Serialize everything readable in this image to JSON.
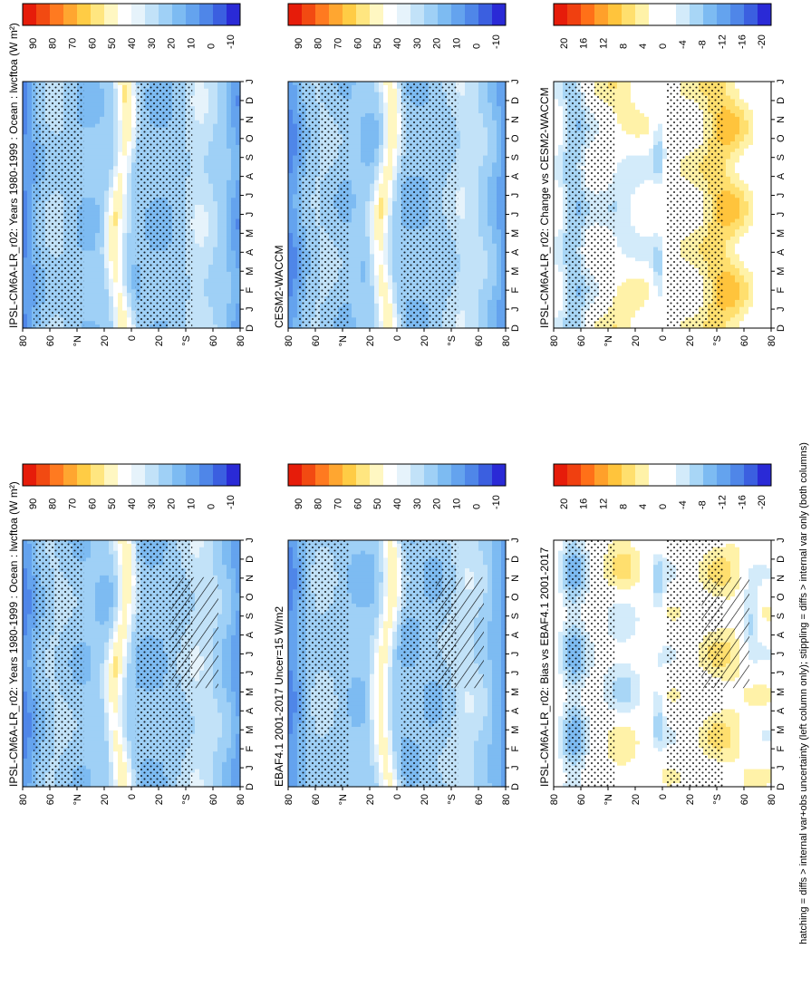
{
  "figure": {
    "footnote": "hatching = diffs > internal var+obs uncertainty (left column only); stippling = diffs > internal var only (both columns)"
  },
  "colors": {
    "field_scale": [
      "#2a2ad6",
      "#3b5fe0",
      "#4f86e8",
      "#64a3ee",
      "#7dbbf2",
      "#9fd0f6",
      "#c2e2f8",
      "#e6f3fb",
      "#ffffff",
      "#fff7c2",
      "#ffe680",
      "#ffcc45",
      "#ffa630",
      "#ff7a20",
      "#f24a12",
      "#e61c0a"
    ],
    "diff_scale": [
      "#2a2ad6",
      "#3b5fe0",
      "#4f86e8",
      "#64a3ee",
      "#7dbbf2",
      "#a8d6f6",
      "#d3ebfa",
      "#ffffff",
      "#ffffff",
      "#fff2a8",
      "#ffdf6e",
      "#ffc43c",
      "#ffa02a",
      "#ff7018",
      "#f04010",
      "#e61c0a"
    ]
  },
  "chart_data": [
    {
      "type": "heatmap",
      "title": "IPSL-CM6A-LR_r02: Years 1980-1999 : Ocean : lwcftoa (W m²)",
      "x_ticks": [
        "D",
        "J",
        "F",
        "M",
        "A",
        "M",
        "J",
        "J",
        "A",
        "S",
        "O",
        "N",
        "D",
        "J"
      ],
      "y_ticks": [
        "80",
        "60",
        "°N",
        "20",
        "0",
        "20",
        "°S",
        "60",
        "80"
      ],
      "colorbar_ticks": [
        "90",
        "80",
        "70",
        "60",
        "50",
        "40",
        "30",
        "20",
        "10",
        "0",
        "-10"
      ],
      "z_range": [
        -10,
        90
      ],
      "scale": "field",
      "hatching": true,
      "stippling": true
    },
    {
      "type": "heatmap",
      "title": "IPSL-CM6A-LR_r02: Years 1980-1999 : Ocean : lwcftoa (W m²)",
      "x_ticks": [
        "D",
        "J",
        "F",
        "M",
        "A",
        "M",
        "J",
        "J",
        "A",
        "S",
        "O",
        "N",
        "D",
        "J"
      ],
      "y_ticks": [
        "80",
        "60",
        "°N",
        "20",
        "0",
        "20",
        "°S",
        "60",
        "80"
      ],
      "colorbar_ticks": [
        "90",
        "80",
        "70",
        "60",
        "50",
        "40",
        "30",
        "20",
        "10",
        "0",
        "-10"
      ],
      "z_range": [
        -10,
        90
      ],
      "scale": "field",
      "hatching": false,
      "stippling": true
    },
    {
      "type": "heatmap",
      "title": "EBAF4.1 2001-2017 Uncer=15 W/m2",
      "x_ticks": [
        "D",
        "J",
        "F",
        "M",
        "A",
        "M",
        "J",
        "J",
        "A",
        "S",
        "O",
        "N",
        "D",
        "J"
      ],
      "y_ticks": [
        "80",
        "60",
        "°N",
        "20",
        "0",
        "20",
        "°S",
        "60",
        "80"
      ],
      "colorbar_ticks": [
        "90",
        "80",
        "70",
        "60",
        "50",
        "40",
        "30",
        "20",
        "10",
        "0",
        "-10"
      ],
      "z_range": [
        -10,
        90
      ],
      "scale": "field",
      "hatching": true,
      "stippling": true
    },
    {
      "type": "heatmap",
      "title": "CESM2-WACCM",
      "x_ticks": [
        "D",
        "J",
        "F",
        "M",
        "A",
        "M",
        "J",
        "J",
        "A",
        "S",
        "O",
        "N",
        "D",
        "J"
      ],
      "y_ticks": [
        "80",
        "60",
        "°N",
        "20",
        "0",
        "20",
        "°S",
        "60",
        "80"
      ],
      "colorbar_ticks": [
        "90",
        "80",
        "70",
        "60",
        "50",
        "40",
        "30",
        "20",
        "10",
        "0",
        "-10"
      ],
      "z_range": [
        -10,
        90
      ],
      "scale": "field",
      "hatching": false,
      "stippling": true
    },
    {
      "type": "heatmap",
      "title": "IPSL-CM6A-LR_r02: Bias vs EBAF4.1 2001-2017",
      "x_ticks": [
        "D",
        "J",
        "F",
        "M",
        "A",
        "M",
        "J",
        "J",
        "A",
        "S",
        "O",
        "N",
        "D",
        "J"
      ],
      "y_ticks": [
        "80",
        "60",
        "°N",
        "20",
        "0",
        "20",
        "°S",
        "60",
        "80"
      ],
      "colorbar_ticks": [
        "20",
        "16",
        "12",
        "8",
        "4",
        "0",
        "-4",
        "-8",
        "-12",
        "-16",
        "-20"
      ],
      "z_range": [
        -20,
        20
      ],
      "scale": "diff",
      "hatching": true,
      "stippling": true
    },
    {
      "type": "heatmap",
      "title": "IPSL-CM6A-LR_r02: Change vs CESM2-WACCM",
      "x_ticks": [
        "D",
        "J",
        "F",
        "M",
        "A",
        "M",
        "J",
        "J",
        "A",
        "S",
        "O",
        "N",
        "D",
        "J"
      ],
      "y_ticks": [
        "80",
        "60",
        "°N",
        "20",
        "0",
        "20",
        "°S",
        "60",
        "80"
      ],
      "colorbar_ticks": [
        "20",
        "16",
        "12",
        "8",
        "4",
        "0",
        "-4",
        "-8",
        "-12",
        "-16",
        "-20"
      ],
      "z_range": [
        -20,
        20
      ],
      "scale": "diff",
      "hatching": false,
      "stippling": true
    }
  ]
}
